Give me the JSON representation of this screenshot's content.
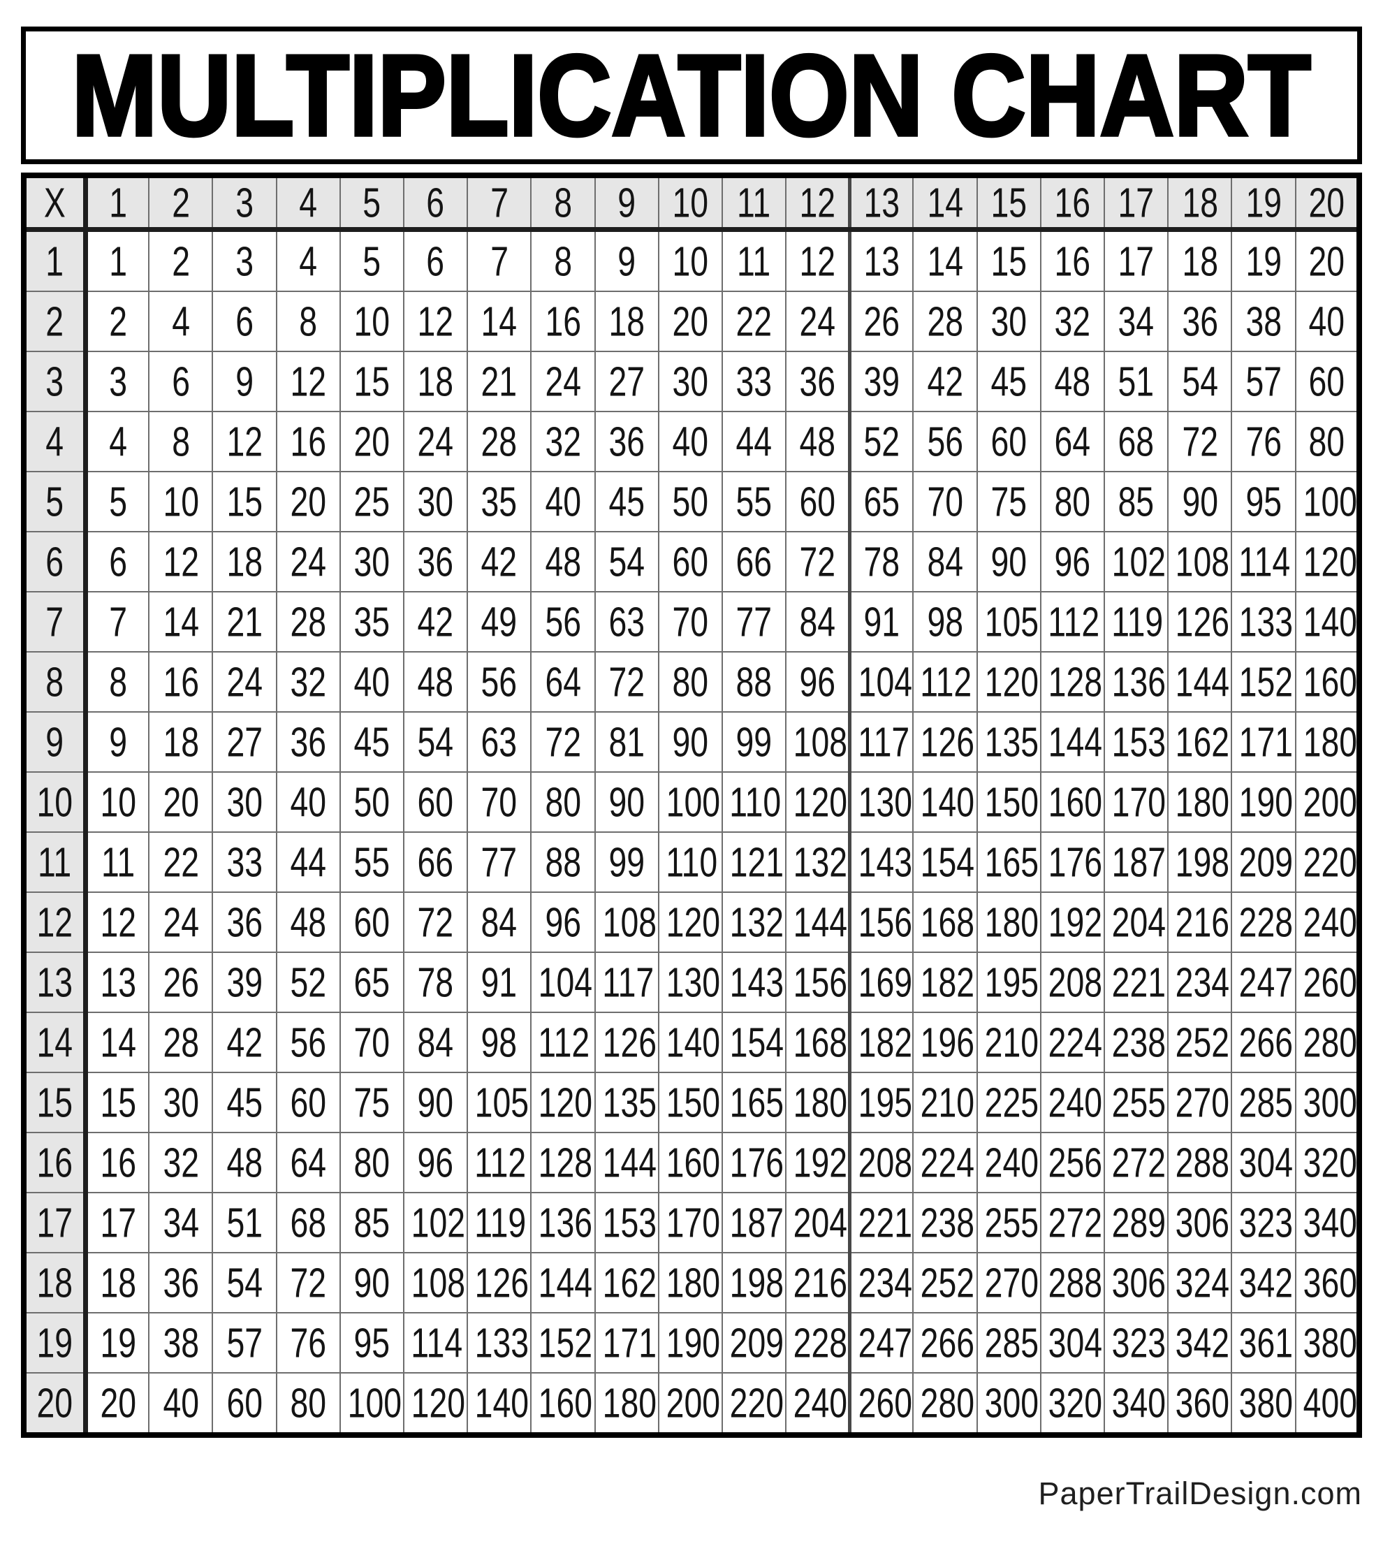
{
  "page": {
    "title": "MULTIPLICATION CHART",
    "footer_credit": "PaperTrailDesign.com"
  },
  "colors": {
    "header_fill": "#e6e6e6",
    "cell_fill": "#ffffff",
    "thin_grid_line": "#6e6e6e",
    "thick_divider": "#1e1e1e",
    "column_12_13_divider": "#474747",
    "outer_border": "#000000",
    "text": "#141414"
  },
  "table": {
    "type": "table",
    "corner_label": "X",
    "column_headers": [
      "1",
      "2",
      "3",
      "4",
      "5",
      "6",
      "7",
      "8",
      "9",
      "10",
      "11",
      "12",
      "13",
      "14",
      "15",
      "16",
      "17",
      "18",
      "19",
      "20"
    ],
    "row_headers": [
      "1",
      "2",
      "3",
      "4",
      "5",
      "6",
      "7",
      "8",
      "9",
      "10",
      "11",
      "12",
      "13",
      "14",
      "15",
      "16",
      "17",
      "18",
      "19",
      "20"
    ],
    "rows": [
      [
        1,
        2,
        3,
        4,
        5,
        6,
        7,
        8,
        9,
        10,
        11,
        12,
        13,
        14,
        15,
        16,
        17,
        18,
        19,
        20
      ],
      [
        2,
        4,
        6,
        8,
        10,
        12,
        14,
        16,
        18,
        20,
        22,
        24,
        26,
        28,
        30,
        32,
        34,
        36,
        38,
        40
      ],
      [
        3,
        6,
        9,
        12,
        15,
        18,
        21,
        24,
        27,
        30,
        33,
        36,
        39,
        42,
        45,
        48,
        51,
        54,
        57,
        60
      ],
      [
        4,
        8,
        12,
        16,
        20,
        24,
        28,
        32,
        36,
        40,
        44,
        48,
        52,
        56,
        60,
        64,
        68,
        72,
        76,
        80
      ],
      [
        5,
        10,
        15,
        20,
        25,
        30,
        35,
        40,
        45,
        50,
        55,
        60,
        65,
        70,
        75,
        80,
        85,
        90,
        95,
        100
      ],
      [
        6,
        12,
        18,
        24,
        30,
        36,
        42,
        48,
        54,
        60,
        66,
        72,
        78,
        84,
        90,
        96,
        102,
        108,
        114,
        120
      ],
      [
        7,
        14,
        21,
        28,
        35,
        42,
        49,
        56,
        63,
        70,
        77,
        84,
        91,
        98,
        105,
        112,
        119,
        126,
        133,
        140
      ],
      [
        8,
        16,
        24,
        32,
        40,
        48,
        56,
        64,
        72,
        80,
        88,
        96,
        104,
        112,
        120,
        128,
        136,
        144,
        152,
        160
      ],
      [
        9,
        18,
        27,
        36,
        45,
        54,
        63,
        72,
        81,
        90,
        99,
        108,
        117,
        126,
        135,
        144,
        153,
        162,
        171,
        180
      ],
      [
        10,
        20,
        30,
        40,
        50,
        60,
        70,
        80,
        90,
        100,
        110,
        120,
        130,
        140,
        150,
        160,
        170,
        180,
        190,
        200
      ],
      [
        11,
        22,
        33,
        44,
        55,
        66,
        77,
        88,
        99,
        110,
        121,
        132,
        143,
        154,
        165,
        176,
        187,
        198,
        209,
        220
      ],
      [
        12,
        24,
        36,
        48,
        60,
        72,
        84,
        96,
        108,
        120,
        132,
        144,
        156,
        168,
        180,
        192,
        204,
        216,
        228,
        240
      ],
      [
        13,
        26,
        39,
        52,
        65,
        78,
        91,
        104,
        117,
        130,
        143,
        156,
        169,
        182,
        195,
        208,
        221,
        234,
        247,
        260
      ],
      [
        14,
        28,
        42,
        56,
        70,
        84,
        98,
        112,
        126,
        140,
        154,
        168,
        182,
        196,
        210,
        224,
        238,
        252,
        266,
        280
      ],
      [
        15,
        30,
        45,
        60,
        75,
        90,
        105,
        120,
        135,
        150,
        165,
        180,
        195,
        210,
        225,
        240,
        255,
        270,
        285,
        300
      ],
      [
        16,
        32,
        48,
        64,
        80,
        96,
        112,
        128,
        144,
        160,
        176,
        192,
        208,
        224,
        240,
        256,
        272,
        288,
        304,
        320
      ],
      [
        17,
        34,
        51,
        68,
        85,
        102,
        119,
        136,
        153,
        170,
        187,
        204,
        221,
        238,
        255,
        272,
        289,
        306,
        323,
        340
      ],
      [
        18,
        36,
        54,
        72,
        90,
        108,
        126,
        144,
        162,
        180,
        198,
        216,
        234,
        252,
        270,
        288,
        306,
        324,
        342,
        360
      ],
      [
        19,
        38,
        57,
        76,
        95,
        114,
        133,
        152,
        171,
        190,
        209,
        228,
        247,
        266,
        285,
        304,
        323,
        342,
        361,
        380
      ],
      [
        20,
        40,
        60,
        80,
        100,
        120,
        140,
        160,
        180,
        200,
        220,
        240,
        260,
        280,
        300,
        320,
        340,
        360,
        380,
        400
      ]
    ]
  }
}
